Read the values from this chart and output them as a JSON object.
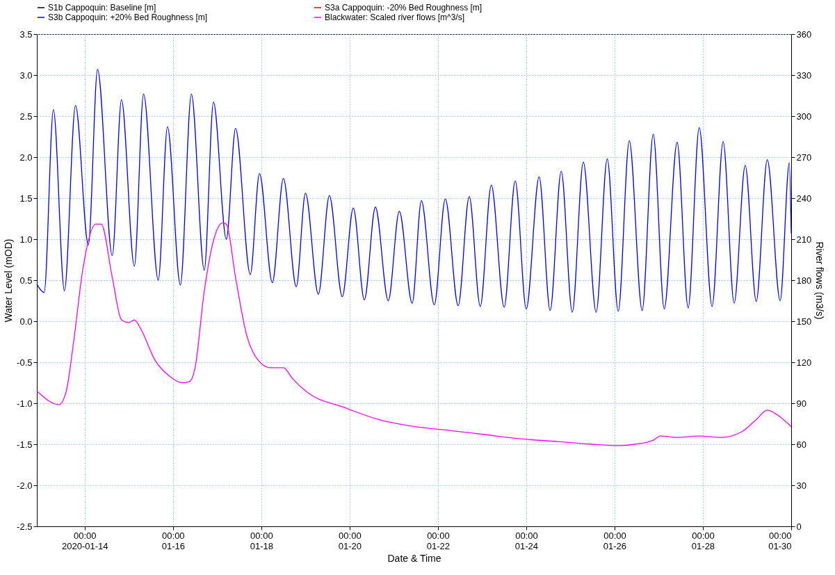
{
  "chart_data": {
    "type": "line",
    "xlabel": "Date & Time",
    "ylabel": "Water Level (mOD)",
    "y2label": "River flows (m3/s)",
    "x": [
      "2020-01-12T22:00",
      "2020-01-13T02:00",
      "2020-01-13T07:00",
      "2020-01-13T13:00",
      "2020-01-13T19:00",
      "2020-01-14T02:00",
      "2020-01-14T07:00",
      "2020-01-14T15:00",
      "2020-01-14T20:00",
      "2020-01-15T03:00",
      "2020-01-15T08:00",
      "2020-01-15T16:00",
      "2020-01-15T21:00",
      "2020-01-16T04:00",
      "2020-01-16T10:00",
      "2020-01-16T17:00",
      "2020-01-16T22:00",
      "2020-01-17T05:00",
      "2020-01-17T10:00",
      "2020-01-17T18:00",
      "2020-01-17T23:00",
      "2020-01-18T06:00",
      "2020-01-18T12:00",
      "2020-01-18T19:00",
      "2020-01-19T00:00",
      "2020-01-19T07:00",
      "2020-01-19T13:00",
      "2020-01-19T20:00",
      "2020-01-20T02:00",
      "2020-01-20T08:00",
      "2020-01-20T14:00",
      "2020-01-20T21:00",
      "2020-01-21T03:00",
      "2020-01-21T10:00",
      "2020-01-21T15:00",
      "2020-01-21T22:00",
      "2020-01-22T04:00",
      "2020-01-22T11:00",
      "2020-01-22T17:00",
      "2020-01-22T23:00",
      "2020-01-23T05:00",
      "2020-01-23T12:00",
      "2020-01-23T18:00",
      "2020-01-24T00:00",
      "2020-01-24T07:00",
      "2020-01-24T13:00",
      "2020-01-24T19:00",
      "2020-01-25T01:00",
      "2020-01-25T07:00",
      "2020-01-25T14:00",
      "2020-01-25T20:00",
      "2020-01-26T02:00",
      "2020-01-26T08:00",
      "2020-01-26T15:00",
      "2020-01-26T21:00",
      "2020-01-27T03:00",
      "2020-01-27T10:00",
      "2020-01-27T16:00",
      "2020-01-27T22:00",
      "2020-01-28T05:00",
      "2020-01-28T11:00",
      "2020-01-28T17:00",
      "2020-01-28T23:00",
      "2020-01-29T05:00",
      "2020-01-29T11:00",
      "2020-01-29T18:00",
      "2020-01-29T23:00",
      "2020-01-30T00:00"
    ],
    "series": [
      {
        "name": "S1b Cappoquin: Baseline [m]",
        "color": "#000000",
        "values": [
          null,
          null,
          null,
          null,
          null,
          null,
          null,
          null,
          null,
          null,
          null,
          null,
          null,
          null,
          null,
          null,
          null,
          null,
          null,
          null,
          null,
          null,
          null,
          null,
          null,
          null,
          null,
          null,
          null,
          null,
          null,
          null,
          null,
          null,
          null,
          null,
          null,
          null,
          null,
          null,
          null,
          null,
          null,
          null,
          null,
          null,
          null,
          null,
          null,
          null,
          null,
          null,
          null,
          null,
          null,
          null,
          null,
          null,
          null,
          null,
          null,
          null,
          null,
          null,
          null,
          null,
          null,
          null
        ]
      },
      {
        "name": "S3a Cappoquin: -20% Bed Roughness [m]",
        "color": "#ff0000",
        "values": [
          null,
          null,
          null,
          null,
          null,
          null,
          null,
          null,
          null,
          null,
          null,
          null,
          null,
          null,
          null,
          null,
          null,
          null,
          null,
          null,
          null,
          null,
          null,
          null,
          null,
          null,
          null,
          null,
          null,
          null,
          null,
          null,
          null,
          null,
          null,
          null,
          null,
          null,
          null,
          null,
          null,
          null,
          null,
          null,
          null,
          null,
          null,
          null,
          null,
          null,
          null,
          null,
          null,
          null,
          null,
          null,
          null,
          null,
          null,
          null,
          null,
          null,
          null,
          null,
          null,
          null,
          null,
          null
        ]
      },
      {
        "name": "S3b Cappoquin: +20% Bed Roughness [m]",
        "color": "#0000ff",
        "values": [
          0.45,
          0.35,
          2.58,
          0.37,
          2.63,
          0.93,
          3.07,
          0.8,
          2.7,
          0.67,
          2.77,
          0.5,
          2.37,
          0.44,
          2.77,
          0.62,
          2.67,
          1.0,
          2.35,
          0.57,
          1.8,
          0.47,
          1.74,
          0.42,
          1.56,
          0.33,
          1.53,
          0.3,
          1.38,
          0.26,
          1.39,
          0.25,
          1.34,
          0.22,
          1.47,
          0.2,
          1.49,
          0.19,
          1.52,
          0.18,
          1.66,
          0.17,
          1.71,
          0.15,
          1.76,
          0.13,
          1.83,
          0.11,
          1.94,
          0.11,
          1.98,
          0.12,
          2.2,
          0.13,
          2.28,
          0.15,
          2.18,
          0.16,
          2.36,
          0.18,
          2.19,
          0.22,
          1.9,
          0.24,
          1.97,
          0.25,
          1.93,
          1.07
        ]
      },
      {
        "name": "Blackwater: Scaled river flows [m^3/s]",
        "color": "#ff00ff",
        "axis": "y2",
        "x": [
          "2020-01-12T22:00",
          "2020-01-13T10:00",
          "2020-01-13T14:00",
          "2020-01-13T18:00",
          "2020-01-13T23:00",
          "2020-01-14T06:00",
          "2020-01-14T09:00",
          "2020-01-14T15:00",
          "2020-01-14T20:00",
          "2020-01-15T00:00",
          "2020-01-15T03:00",
          "2020-01-15T07:00",
          "2020-01-15T14:00",
          "2020-01-15T22:00",
          "2020-01-16T05:00",
          "2020-01-16T09:00",
          "2020-01-16T12:00",
          "2020-01-16T17:00",
          "2020-01-16T22:00",
          "2020-01-17T03:00",
          "2020-01-17T05:00",
          "2020-01-17T10:00",
          "2020-01-17T16:00",
          "2020-01-17T22:00",
          "2020-01-18T05:00",
          "2020-01-18T12:00",
          "2020-01-18T17:00",
          "2020-01-19T01:00",
          "2020-01-19T21:00",
          "2020-01-20T16:00",
          "2020-01-21T11:00",
          "2020-01-22T07:00",
          "2020-01-23T02:00",
          "2020-01-23T21:00",
          "2020-01-24T17:00",
          "2020-01-25T12:00",
          "2020-01-26T02:00",
          "2020-01-26T11:00",
          "2020-01-26T21:00",
          "2020-01-27T01:00",
          "2020-01-27T10:00",
          "2020-01-27T22:00",
          "2020-01-28T10:00",
          "2020-01-28T21:00",
          "2020-01-29T05:00",
          "2020-01-29T11:00",
          "2020-01-29T17:00",
          "2020-01-30T00:00"
        ],
        "values": [
          99,
          89,
          99,
          135,
          188,
          221,
          221,
          182,
          151,
          149,
          151,
          143,
          122,
          110,
          105,
          106,
          116,
          172,
          209,
          222,
          221,
          182,
          140,
          122,
          116,
          116,
          108,
          98,
          87,
          78,
          73,
          70,
          67,
          64,
          62,
          60,
          59,
          60,
          63,
          66,
          65,
          66,
          65,
          69,
          78,
          85,
          81,
          73
        ]
      }
    ],
    "xlim": [
      "2020-01-12T22:00",
      "2020-01-30T00:00"
    ],
    "xticks": [
      {
        "value": "2020-01-14",
        "label": "00:00\n2020-01-14"
      },
      {
        "value": "2020-01-16",
        "label": "00:00\n01-16"
      },
      {
        "value": "2020-01-18",
        "label": "00:00\n01-18"
      },
      {
        "value": "2020-01-20",
        "label": "00:00\n01-20"
      },
      {
        "value": "2020-01-22",
        "label": "00:00\n01-22"
      },
      {
        "value": "2020-01-24",
        "label": "00:00\n01-24"
      },
      {
        "value": "2020-01-26",
        "label": "00:00\n01-26"
      },
      {
        "value": "2020-01-28",
        "label": "00:00\n01-28"
      },
      {
        "value": "2020-01-30",
        "label": "00:00\n01-30"
      }
    ],
    "ylim": [
      -2.5,
      3.5
    ],
    "yticks": [
      {
        "value": -2.5,
        "label": "-2.5"
      },
      {
        "value": -2,
        "label": "-2.0"
      },
      {
        "value": -1.5,
        "label": "-1.5"
      },
      {
        "value": -1,
        "label": "-1.0"
      },
      {
        "value": -0.5,
        "label": "-0.5"
      },
      {
        "value": 0,
        "label": "0.0"
      },
      {
        "value": 0.5,
        "label": "0.5"
      },
      {
        "value": 1,
        "label": "1.0"
      },
      {
        "value": 1.5,
        "label": "1.5"
      },
      {
        "value": 2,
        "label": "2.0"
      },
      {
        "value": 2.5,
        "label": "2.5"
      },
      {
        "value": 3,
        "label": "3.0"
      },
      {
        "value": 3.5,
        "label": "3.5"
      }
    ],
    "y2lim": [
      0,
      360
    ],
    "y2ticks": [
      0,
      30,
      60,
      90,
      120,
      150,
      180,
      210,
      240,
      270,
      300,
      330,
      360
    ],
    "grid": true,
    "legend": "top"
  }
}
